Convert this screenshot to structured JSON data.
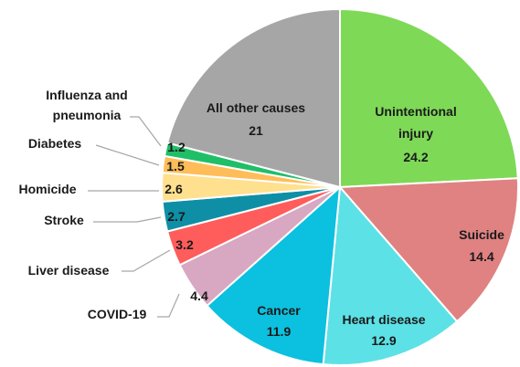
{
  "chart_data": {
    "type": "pie",
    "categories": [
      "Unintentional injury",
      "Suicide",
      "Heart disease",
      "Cancer",
      "COVID-19",
      "Liver disease",
      "Stroke",
      "Homicide",
      "Diabetes",
      "Influenza and pneumonia",
      "All other causes"
    ],
    "values": [
      24.2,
      14.4,
      12.9,
      11.9,
      4.4,
      3.2,
      2.7,
      2.6,
      1.5,
      1.2,
      21
    ],
    "colors": [
      "#7ed957",
      "#e08282",
      "#5ce1e6",
      "#0cc0df",
      "#d8a7c1",
      "#ff5c5c",
      "#0e8fa6",
      "#ffe08f",
      "#ffbd59",
      "#1fbf68",
      "#a6a6a6"
    ]
  }
}
